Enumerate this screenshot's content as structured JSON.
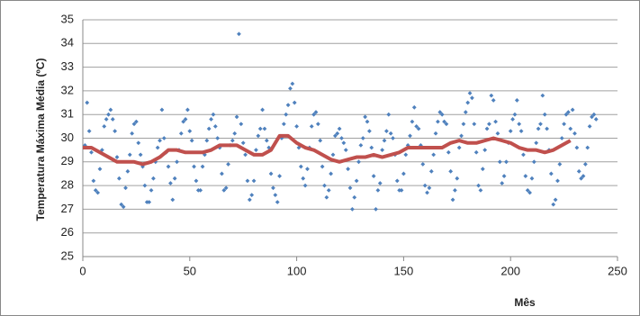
{
  "chart_data": {
    "type": "scatter",
    "y_label": "Temperatura Máxima Média (ºC)",
    "x_label": "Mês",
    "xlim": [
      0,
      250
    ],
    "xticks": [
      0,
      50,
      100,
      150,
      200,
      250
    ],
    "ylim": [
      25,
      35
    ],
    "yticks": [
      25,
      26,
      27,
      28,
      29,
      30,
      31,
      32,
      33,
      34,
      35
    ],
    "grid": true,
    "series": [
      {
        "type": "scatter",
        "color": "#4f81bd",
        "x": [
          1,
          2,
          3,
          4,
          5,
          6,
          7,
          8,
          9,
          10,
          11,
          12,
          13,
          14,
          15,
          16,
          17,
          18,
          19,
          20,
          21,
          22,
          23,
          24,
          25,
          26,
          27,
          28,
          29,
          30,
          31,
          32,
          33,
          34,
          35,
          36,
          37,
          38,
          39,
          40,
          41,
          42,
          43,
          44,
          45,
          46,
          47,
          48,
          49,
          50,
          51,
          52,
          53,
          54,
          55,
          56,
          57,
          58,
          59,
          60,
          61,
          62,
          63,
          64,
          65,
          66,
          67,
          68,
          69,
          70,
          71,
          72,
          73,
          74,
          75,
          76,
          77,
          78,
          79,
          80,
          81,
          82,
          83,
          84,
          85,
          86,
          87,
          88,
          89,
          90,
          91,
          92,
          93,
          94,
          95,
          96,
          97,
          98,
          99,
          100,
          101,
          102,
          103,
          104,
          105,
          106,
          107,
          108,
          109,
          110,
          111,
          112,
          113,
          114,
          115,
          116,
          117,
          118,
          119,
          120,
          121,
          122,
          123,
          124,
          125,
          126,
          127,
          128,
          129,
          130,
          131,
          132,
          133,
          134,
          135,
          136,
          137,
          138,
          139,
          140,
          141,
          142,
          143,
          144,
          145,
          146,
          147,
          148,
          149,
          150,
          151,
          152,
          153,
          154,
          155,
          156,
          157,
          158,
          159,
          160,
          161,
          162,
          163,
          164,
          165,
          166,
          167,
          168,
          169,
          170,
          171,
          172,
          173,
          174,
          175,
          176,
          177,
          178,
          179,
          180,
          181,
          182,
          183,
          184,
          185,
          186,
          187,
          188,
          189,
          190,
          191,
          192,
          193,
          194,
          195,
          196,
          197,
          198,
          199,
          200,
          201,
          202,
          203,
          204,
          205,
          206,
          207,
          208,
          209,
          210,
          211,
          212,
          213,
          214,
          215,
          216,
          217,
          218,
          219,
          220,
          221,
          222,
          223,
          224,
          225,
          226,
          227,
          228,
          229,
          230,
          231,
          232,
          233,
          234,
          235,
          236,
          237,
          238,
          239,
          240
        ],
        "values": [
          29.7,
          31.5,
          30.3,
          29.4,
          28.2,
          27.8,
          27.7,
          28.7,
          29.5,
          30.5,
          30.8,
          31.0,
          31.2,
          30.8,
          30.3,
          29.2,
          28.3,
          27.2,
          27.1,
          27.9,
          28.6,
          29.3,
          30.2,
          30.6,
          30.7,
          29.8,
          29.3,
          28.8,
          28.0,
          27.3,
          27.3,
          27.8,
          28.3,
          29.0,
          29.6,
          29.9,
          31.2,
          30.0,
          29.4,
          28.8,
          28.1,
          27.4,
          28.3,
          29.0,
          29.5,
          30.2,
          30.7,
          30.8,
          31.2,
          30.3,
          29.9,
          28.8,
          28.2,
          27.8,
          27.8,
          28.8,
          29.3,
          29.9,
          30.4,
          30.8,
          31.0,
          30.5,
          30.0,
          29.6,
          28.5,
          27.8,
          27.9,
          28.9,
          29.7,
          29.9,
          30.2,
          30.9,
          34.4,
          30.6,
          29.8,
          29.3,
          28.2,
          27.4,
          27.6,
          28.2,
          29.5,
          30.1,
          30.4,
          31.2,
          30.4,
          29.9,
          29.6,
          28.5,
          27.9,
          27.6,
          27.3,
          28.4,
          30.0,
          30.6,
          31.0,
          31.4,
          32.1,
          32.3,
          31.5,
          30.5,
          29.6,
          28.8,
          28.3,
          28.0,
          28.7,
          29.6,
          30.5,
          31.0,
          31.1,
          30.6,
          29.9,
          28.8,
          28.0,
          27.5,
          27.8,
          28.5,
          29.3,
          30.1,
          30.2,
          30.4,
          30.0,
          29.8,
          29.5,
          28.7,
          27.9,
          27.0,
          27.5,
          28.2,
          29.0,
          29.7,
          30.0,
          30.9,
          30.7,
          30.3,
          29.6,
          28.4,
          27.0,
          27.8,
          28.1,
          29.5,
          29.9,
          30.3,
          31.0,
          30.2,
          30.0,
          29.3,
          28.2,
          27.8,
          27.8,
          28.5,
          29.3,
          29.7,
          30.1,
          30.7,
          31.3,
          30.5,
          30.4,
          29.7,
          28.9,
          28.0,
          27.7,
          27.9,
          28.6,
          29.3,
          30.2,
          30.7,
          31.1,
          31.0,
          30.7,
          30.6,
          29.4,
          28.6,
          27.4,
          27.8,
          28.3,
          29.6,
          30.1,
          30.6,
          31.1,
          31.5,
          31.9,
          31.7,
          30.6,
          29.4,
          28.0,
          27.8,
          28.7,
          29.5,
          30.4,
          30.6,
          31.8,
          31.6,
          30.7,
          30.2,
          29.0,
          28.1,
          28.4,
          29.0,
          29.8,
          30.3,
          30.8,
          31.0,
          31.6,
          30.6,
          30.3,
          29.3,
          28.4,
          27.8,
          27.7,
          28.3,
          29.0,
          29.8,
          30.4,
          30.6,
          31.8,
          31.0,
          30.4,
          29.5,
          28.5,
          27.2,
          27.4,
          28.2,
          28.9,
          30.0,
          30.6,
          31.0,
          31.1,
          30.4,
          31.2,
          30.2,
          29.6,
          28.6,
          28.3,
          28.4,
          28.9,
          29.6,
          30.5,
          30.9,
          31.0,
          30.8
        ]
      },
      {
        "type": "line",
        "color": "#c0504d",
        "x": [
          0,
          4,
          8,
          12,
          16,
          20,
          24,
          28,
          32,
          36,
          40,
          44,
          48,
          52,
          56,
          60,
          64,
          68,
          72,
          76,
          80,
          84,
          88,
          92,
          96,
          100,
          104,
          108,
          112,
          116,
          120,
          124,
          128,
          132,
          136,
          140,
          144,
          148,
          152,
          156,
          160,
          164,
          168,
          172,
          176,
          180,
          184,
          188,
          192,
          196,
          200,
          204,
          208,
          212,
          216,
          220,
          224,
          228
        ],
        "values": [
          29.6,
          29.6,
          29.4,
          29.2,
          29.0,
          29.0,
          29.0,
          28.9,
          29.0,
          29.2,
          29.5,
          29.5,
          29.4,
          29.4,
          29.4,
          29.5,
          29.7,
          29.7,
          29.7,
          29.5,
          29.3,
          29.3,
          29.5,
          30.1,
          30.1,
          29.8,
          29.6,
          29.5,
          29.3,
          29.1,
          29.0,
          29.1,
          29.2,
          29.2,
          29.3,
          29.2,
          29.3,
          29.4,
          29.6,
          29.6,
          29.6,
          29.6,
          29.6,
          29.8,
          29.9,
          29.8,
          29.8,
          29.9,
          30.0,
          29.9,
          29.8,
          29.6,
          29.5,
          29.5,
          29.4,
          29.5,
          29.7,
          29.9
        ]
      }
    ]
  }
}
